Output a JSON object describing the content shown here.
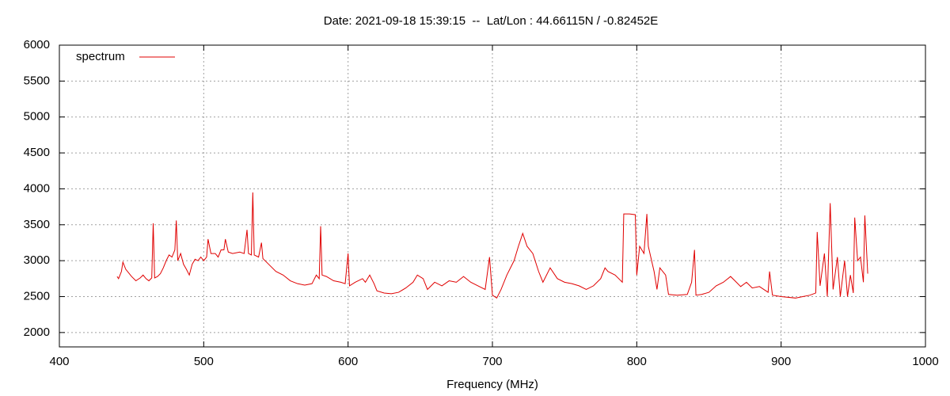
{
  "chart_data": {
    "type": "line",
    "title": "Date: 2021-09-18 15:39:15  --  Lat/Lon : 44.66115N / -0.82452E",
    "xlabel": "Frequency (MHz)",
    "xlim": [
      400,
      1000
    ],
    "xticks": [
      400,
      500,
      600,
      700,
      800,
      900,
      1000
    ],
    "ylim": [
      1800,
      6000
    ],
    "yticks": [
      2000,
      2500,
      3000,
      3500,
      4000,
      4500,
      5000,
      5500,
      6000
    ],
    "grid": true,
    "legend": "top-left",
    "x": [
      440,
      441,
      443,
      444,
      446,
      450,
      453,
      456,
      458,
      460,
      462,
      464,
      465,
      466,
      468,
      470,
      472,
      474,
      476,
      478,
      480,
      481,
      482,
      484,
      486,
      488,
      490,
      492,
      494,
      496,
      498,
      500,
      502,
      503,
      505,
      508,
      510,
      512,
      514,
      515,
      517,
      520,
      525,
      528,
      530,
      531,
      533,
      534,
      535,
      538,
      540,
      541,
      545,
      550,
      555,
      560,
      565,
      570,
      575,
      578,
      580,
      581,
      582,
      585,
      590,
      595,
      598,
      600,
      601,
      605,
      610,
      612,
      615,
      618,
      620,
      625,
      630,
      635,
      640,
      645,
      648,
      652,
      655,
      660,
      665,
      670,
      675,
      680,
      685,
      690,
      695,
      698,
      700,
      703,
      706,
      710,
      715,
      718,
      721,
      724,
      728,
      732,
      735,
      740,
      745,
      750,
      755,
      760,
      765,
      770,
      775,
      778,
      780,
      785,
      790,
      791,
      795,
      799,
      800,
      802,
      805,
      807,
      808,
      812,
      814,
      816,
      820,
      822,
      828,
      835,
      838,
      840,
      841,
      845,
      850,
      855,
      860,
      865,
      868,
      872,
      876,
      880,
      885,
      888,
      891,
      892,
      894,
      900,
      910,
      915,
      920,
      924,
      925,
      927,
      930,
      932,
      934,
      936,
      939,
      941,
      944,
      946,
      948,
      950,
      951,
      953,
      955,
      957,
      958,
      960
    ],
    "series": [
      {
        "name": "spectrum",
        "color": "#e00000",
        "values": [
          2780,
          2750,
          2850,
          2980,
          2880,
          2780,
          2720,
          2760,
          2800,
          2750,
          2720,
          2760,
          3520,
          2760,
          2780,
          2820,
          2900,
          3000,
          3080,
          3050,
          3150,
          3560,
          3000,
          3100,
          2950,
          2880,
          2800,
          2950,
          3020,
          3000,
          3050,
          3000,
          3050,
          3300,
          3100,
          3100,
          3050,
          3150,
          3150,
          3300,
          3120,
          3100,
          3120,
          3100,
          3430,
          3100,
          3080,
          3950,
          3080,
          3050,
          3250,
          3030,
          2950,
          2850,
          2800,
          2720,
          2680,
          2660,
          2680,
          2800,
          2750,
          3480,
          2800,
          2780,
          2720,
          2700,
          2680,
          3100,
          2650,
          2700,
          2750,
          2700,
          2800,
          2680,
          2580,
          2550,
          2540,
          2560,
          2620,
          2700,
          2800,
          2750,
          2600,
          2700,
          2650,
          2720,
          2700,
          2780,
          2700,
          2650,
          2600,
          3050,
          2520,
          2480,
          2600,
          2800,
          3000,
          3200,
          3380,
          3200,
          3100,
          2850,
          2700,
          2900,
          2750,
          2700,
          2680,
          2650,
          2600,
          2650,
          2750,
          2900,
          2850,
          2800,
          2700,
          3650,
          3650,
          3640,
          2800,
          3200,
          3100,
          3650,
          3200,
          2850,
          2600,
          2900,
          2800,
          2530,
          2520,
          2530,
          2700,
          3150,
          2520,
          2530,
          2560,
          2650,
          2700,
          2780,
          2720,
          2640,
          2700,
          2620,
          2640,
          2600,
          2560,
          2850,
          2520,
          2500,
          2480,
          2500,
          2520,
          2550,
          3400,
          2650,
          3100,
          2500,
          3800,
          2600,
          3050,
          2500,
          3000,
          2500,
          2800,
          2550,
          3600,
          3000,
          3050,
          2700,
          3630,
          2820
        ]
      }
    ]
  }
}
